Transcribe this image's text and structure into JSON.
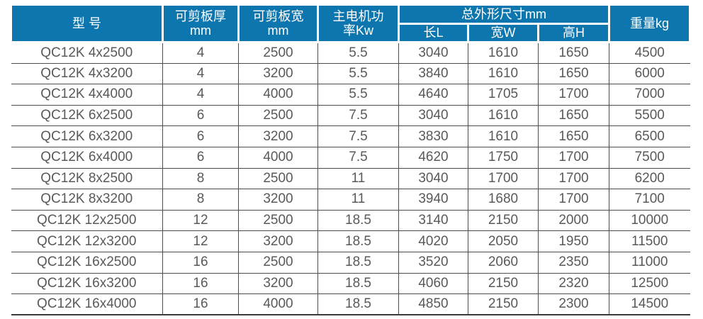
{
  "colors": {
    "header-bg": "#0d76ae",
    "header-text": "#ffffff",
    "grid-line": "#4d4d4d",
    "data-text": "#58595b",
    "header-divider": "#ffffff",
    "page-bg": "#ffffff"
  },
  "chart_data": {
    "type": "table",
    "title": "QC12K shearing machine specification table",
    "header": {
      "model": "型 号",
      "thickness": "可剪板厚\nmm",
      "sheet_width": "可剪板宽\nmm",
      "motor_power": "主电机功\n率Kw",
      "overall_dims": "总外形尺寸mm",
      "length_l": "长L",
      "width_w": "宽W",
      "height_h": "高H",
      "weight": "重量kg"
    },
    "row_keys": [
      "model",
      "thickness",
      "sheet_width",
      "motor_power",
      "length_l",
      "width_w",
      "height_h",
      "weight"
    ],
    "rows": [
      {
        "model": "QC12K 4x2500",
        "thickness": "4",
        "sheet_width": "2500",
        "motor_power": "5.5",
        "length_l": "3040",
        "width_w": "1610",
        "height_h": "1650",
        "weight": "4500"
      },
      {
        "model": "QC12K 4x3200",
        "thickness": "4",
        "sheet_width": "3200",
        "motor_power": "5.5",
        "length_l": "3840",
        "width_w": "1610",
        "height_h": "1650",
        "weight": "6000"
      },
      {
        "model": "QC12K 4x4000",
        "thickness": "4",
        "sheet_width": "4000",
        "motor_power": "5.5",
        "length_l": "4640",
        "width_w": "1705",
        "height_h": "1700",
        "weight": "7000"
      },
      {
        "model": "QC12K 6x2500",
        "thickness": "6",
        "sheet_width": "2500",
        "motor_power": "7.5",
        "length_l": "3040",
        "width_w": "1610",
        "height_h": "1650",
        "weight": "5500"
      },
      {
        "model": "QC12K 6x3200",
        "thickness": "6",
        "sheet_width": "3200",
        "motor_power": "7.5",
        "length_l": "3830",
        "width_w": "1610",
        "height_h": "1650",
        "weight": "6500"
      },
      {
        "model": "QC12K 6x4000",
        "thickness": "6",
        "sheet_width": "4000",
        "motor_power": "7.5",
        "length_l": "4620",
        "width_w": "1750",
        "height_h": "1700",
        "weight": "7500"
      },
      {
        "model": "QC12K 8x2500",
        "thickness": "8",
        "sheet_width": "2500",
        "motor_power": "11",
        "length_l": "3040",
        "width_w": "1700",
        "height_h": "1700",
        "weight": "6200"
      },
      {
        "model": "QC12K 8x3200",
        "thickness": "8",
        "sheet_width": "3200",
        "motor_power": "11",
        "length_l": "3940",
        "width_w": "1680",
        "height_h": "1700",
        "weight": "7100"
      },
      {
        "model": "QC12K 12x2500",
        "thickness": "12",
        "sheet_width": "2500",
        "motor_power": "18.5",
        "length_l": "3140",
        "width_w": "2150",
        "height_h": "2000",
        "weight": "10000"
      },
      {
        "model": "QC12K 12x3200",
        "thickness": "12",
        "sheet_width": "3200",
        "motor_power": "18.5",
        "length_l": "4020",
        "width_w": "2050",
        "height_h": "1950",
        "weight": "11500"
      },
      {
        "model": "QC12K 16x2500",
        "thickness": "16",
        "sheet_width": "2500",
        "motor_power": "18.5",
        "length_l": "3520",
        "width_w": "2060",
        "height_h": "2350",
        "weight": "11000"
      },
      {
        "model": "QC12K 16x3200",
        "thickness": "16",
        "sheet_width": "3200",
        "motor_power": "18.5",
        "length_l": "4060",
        "width_w": "2150",
        "height_h": "2320",
        "weight": "12500"
      },
      {
        "model": "QC12K 16x4000",
        "thickness": "16",
        "sheet_width": "4000",
        "motor_power": "18.5",
        "length_l": "4850",
        "width_w": "2150",
        "height_h": "2300",
        "weight": "14500"
      }
    ]
  }
}
